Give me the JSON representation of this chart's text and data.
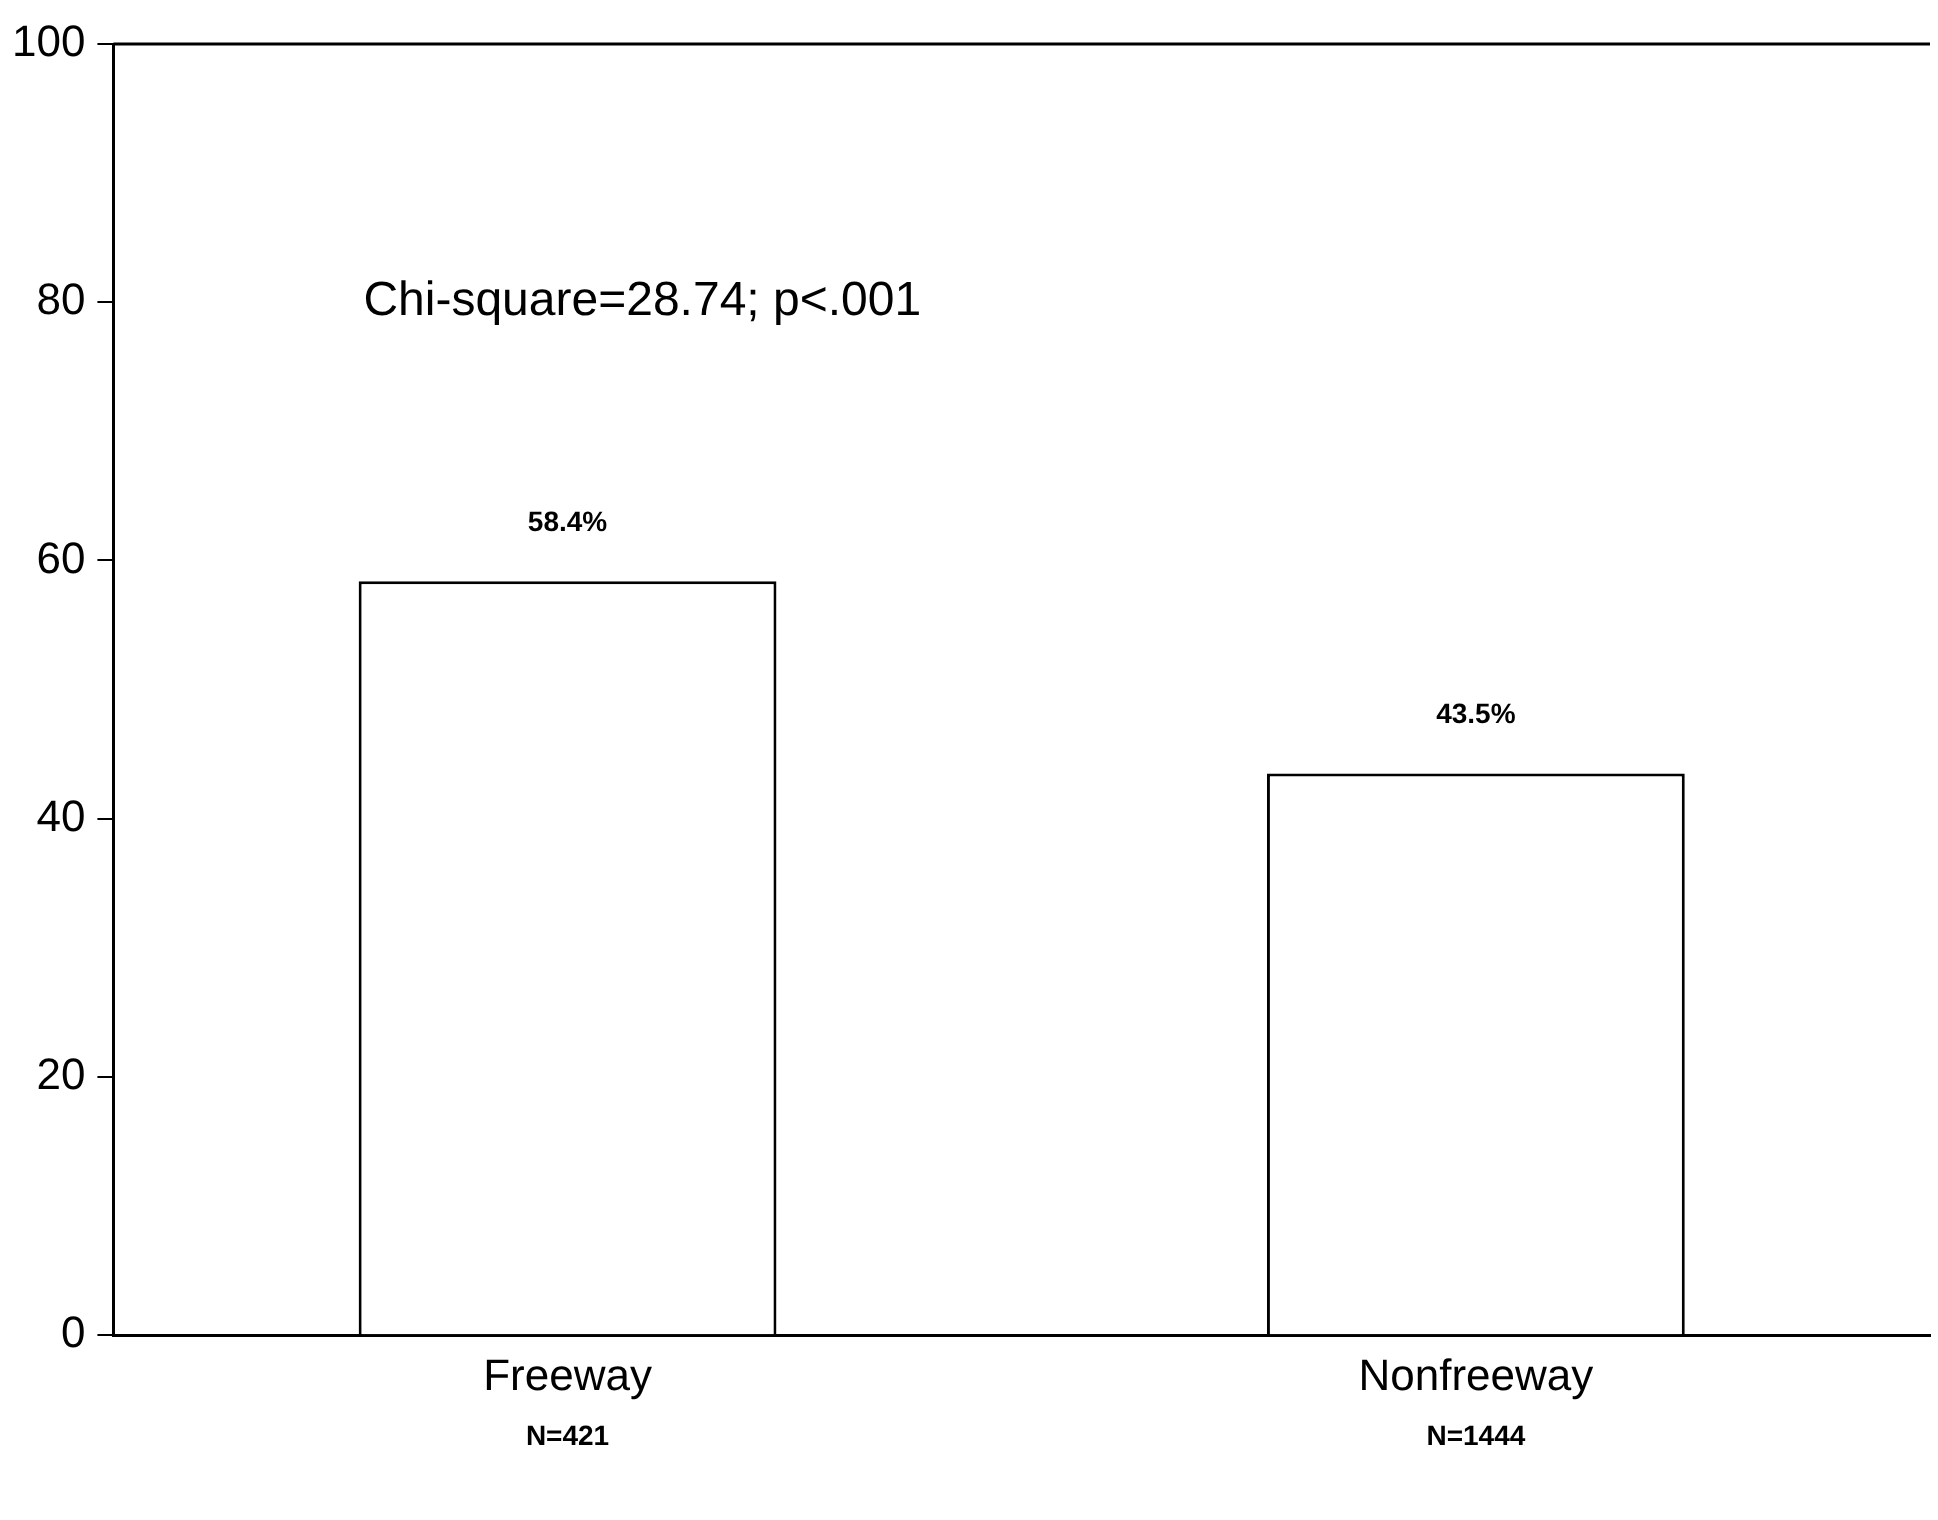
{
  "chart_data": {
    "type": "bar",
    "categories": [
      "Freeway",
      "Nonfreeway"
    ],
    "values": [
      58.4,
      43.5
    ],
    "color": "#ffffff",
    "value_labels": [
      "58.4%",
      "43.5%"
    ],
    "ylim": [
      0,
      100
    ],
    "yticks": [
      0,
      20,
      40,
      60,
      80,
      100
    ],
    "grid": false,
    "legend": false,
    "annotations": [
      {
        "text": "Chi-square=28.74; p<.001"
      },
      "N=421",
      "N=1444"
    ]
  }
}
